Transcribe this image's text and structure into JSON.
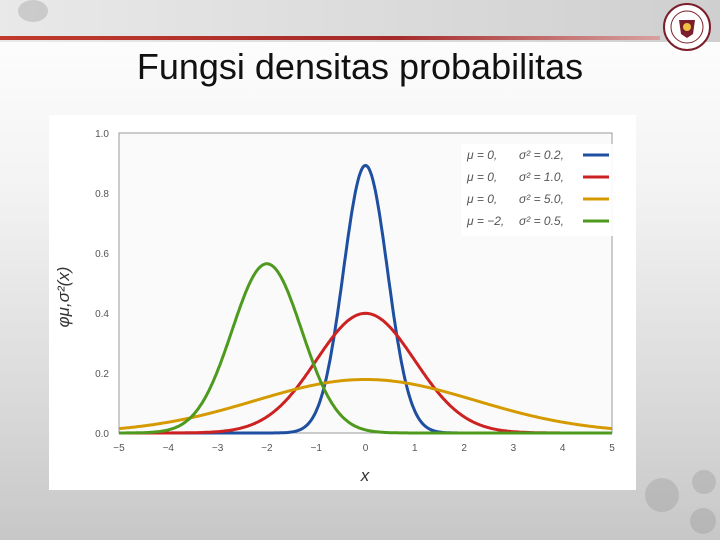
{
  "slide": {
    "title": "Fungsi densitas probabilitas"
  },
  "logo": {
    "icon": "university-seal-icon",
    "text": "UNIVERSITAS GUNADARMA"
  },
  "colors": {
    "accent": "#b03030"
  },
  "chart_data": {
    "type": "line",
    "xlabel": "x",
    "ylabel": "φμ,σ²(x)",
    "xlim": [
      -5,
      5
    ],
    "ylim": [
      0,
      1.0
    ],
    "xticks": [
      "−5",
      "−4",
      "−3",
      "−2",
      "−1",
      "0",
      "1",
      "2",
      "3",
      "4",
      "5"
    ],
    "yticks": [
      "0.0",
      "0.2",
      "0.4",
      "0.6",
      "0.8",
      "1.0"
    ],
    "grid": true,
    "legend_position": "top-right",
    "series": [
      {
        "mu_label": "μ = 0,",
        "var_label": "σ² = 0.2,",
        "mu": 0,
        "variance": 0.2,
        "color": "#1f4fa0"
      },
      {
        "mu_label": "μ = 0,",
        "var_label": "σ² = 1.0,",
        "mu": 0,
        "variance": 1.0,
        "color": "#cc2222"
      },
      {
        "mu_label": "μ = 0,",
        "var_label": "σ² = 5.0,",
        "mu": 0,
        "variance": 5.0,
        "color": "#d49a00"
      },
      {
        "mu_label": "μ = −2,",
        "var_label": "σ² = 0.5,",
        "mu": -2,
        "variance": 0.5,
        "color": "#4e9a1e"
      }
    ]
  }
}
